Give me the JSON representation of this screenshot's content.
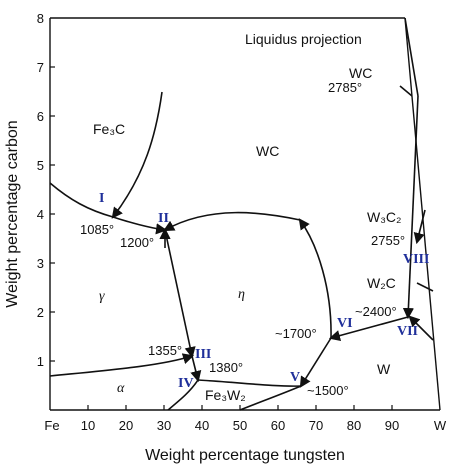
{
  "diagram": {
    "title": "Liquidus projection",
    "xlabel": "Weight percentage  tungsten",
    "ylabel": "Weight percentage carbon",
    "x_ticks": [
      "Fe",
      "10",
      "20",
      "30",
      "40",
      "50",
      "60",
      "70",
      "80",
      "90",
      "W"
    ],
    "y_ticks": [
      "1",
      "2",
      "3",
      "4",
      "5",
      "6",
      "7",
      "8"
    ],
    "phase_labels": {
      "fe3c": "Fe₃C",
      "wc": "WC",
      "wc_corner": "WC",
      "gamma": "γ",
      "eta": "η",
      "alpha": "α",
      "fe3w2": "Fe₃W₂",
      "w": "W",
      "w3c2": "W₃C₂",
      "w2c": "W₂C"
    },
    "temperatures": {
      "t2785": "2785°",
      "t1085": "1085°",
      "t1200": "1200°",
      "t2755": "2755°",
      "t2400": "~2400°",
      "t1700": "~1700°",
      "t1355": "1355°",
      "t1380": "1380°",
      "t1500": "~1500°"
    },
    "points": {
      "p1": "I",
      "p2": "II",
      "p3": "III",
      "p4": "IV",
      "p5": "V",
      "p6": "VI",
      "p7": "VII",
      "p8": "VIII"
    },
    "colors": {
      "axis": "#111111",
      "roman": "#1f2f9a"
    }
  }
}
